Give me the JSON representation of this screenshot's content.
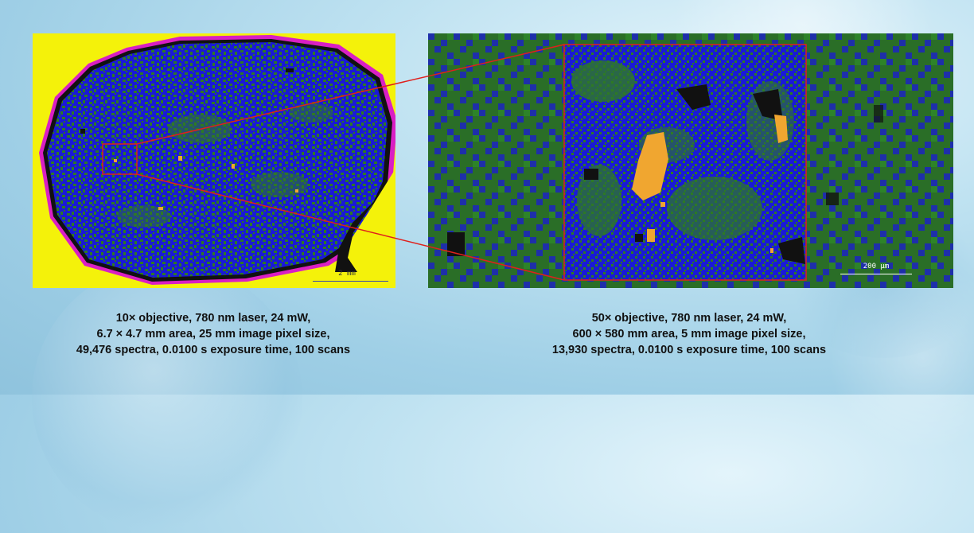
{
  "left_map": {
    "scale_label": "2 mm",
    "caption_lines": [
      "10× objective, 780 nm laser, 24 mW,",
      "6.7 × 4.7 mm area, 25 mm image pixel size,",
      "49,476 spectra, 0.0100 s exposure time, 100 scans"
    ]
  },
  "right_map": {
    "scale_label": "200 µm",
    "caption_lines": [
      "50× objective, 780 nm laser, 24 mW,",
      "600 × 580 mm area, 5 mm image pixel size,",
      "13,930 spectra, 0.0100 s exposure time, 100 scans"
    ]
  },
  "colors": {
    "background": "#f4f20a",
    "primary_phase": "#1a1ad6",
    "secondary_phase": "#2e7a24",
    "minor_phase": "#f0a630",
    "edge_phase": "#e020c8",
    "void": "#111111",
    "zoom_lines": "#e0201c"
  }
}
